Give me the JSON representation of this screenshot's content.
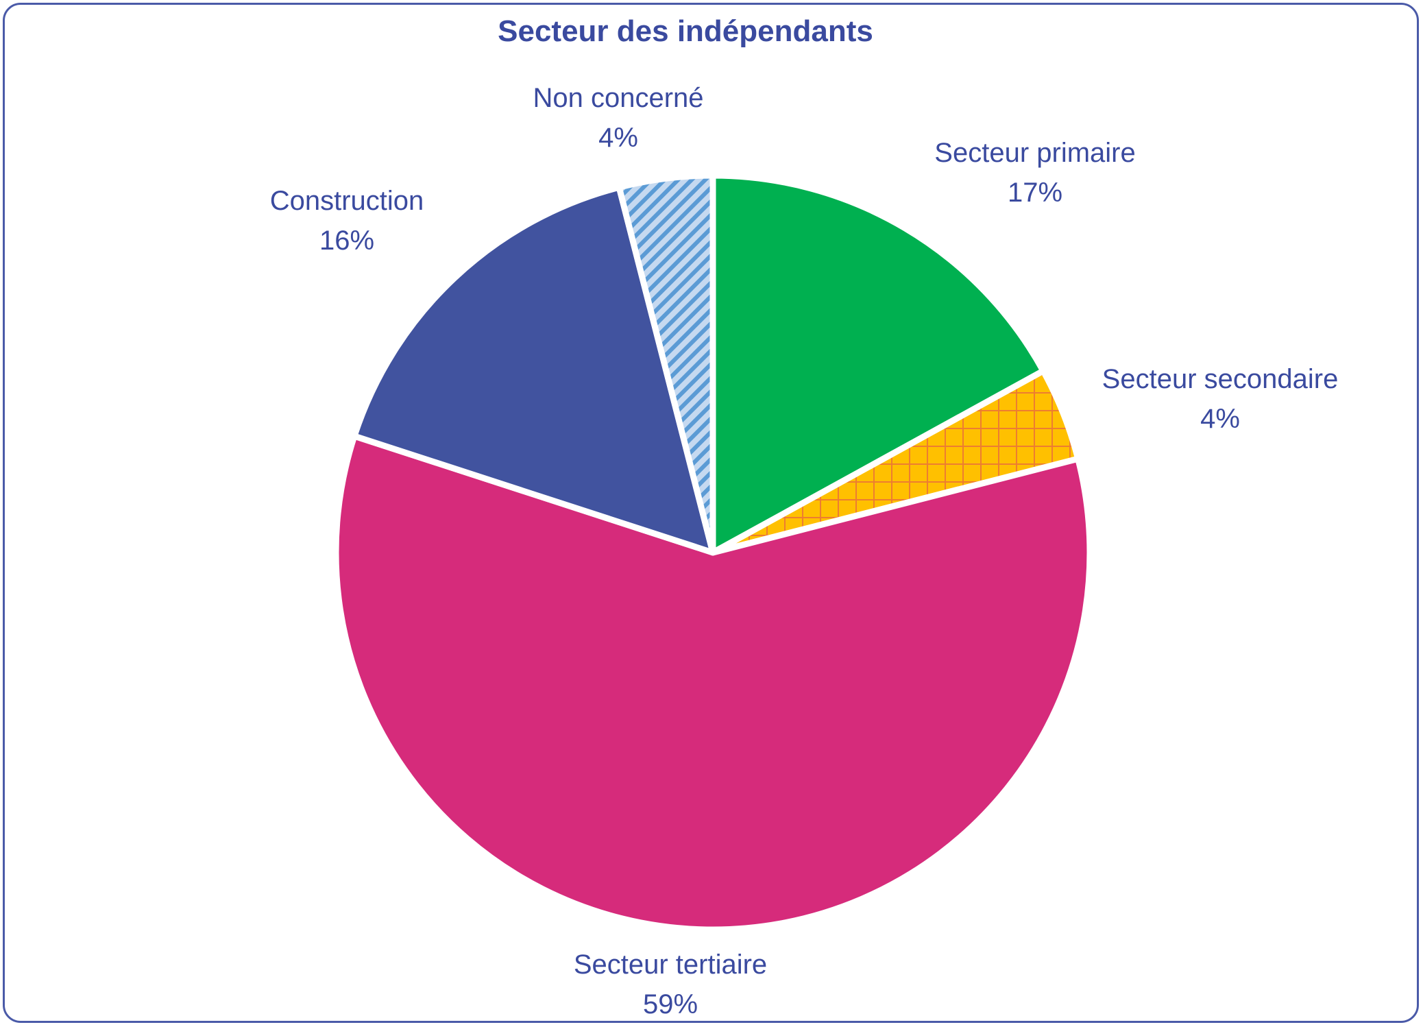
{
  "chart_data": {
    "type": "pie",
    "title": "Secteur des indépendants",
    "slices": [
      {
        "label": "Secteur primaire",
        "value": 17,
        "display": "17%",
        "color": "#00b050",
        "pattern": "solid"
      },
      {
        "label": "Secteur secondaire",
        "value": 4,
        "display": "4%",
        "color": "#ffc000",
        "pattern": "crosshatch",
        "pattern_color": "#ed7d31"
      },
      {
        "label": "Secteur tertiaire",
        "value": 59,
        "display": "59%",
        "color": "#d62b7b",
        "pattern": "solid"
      },
      {
        "label": "Construction",
        "value": 16,
        "display": "16%",
        "color": "#41539f",
        "pattern": "solid"
      },
      {
        "label": "Non concerné",
        "value": 4,
        "display": "4%",
        "color": "#9dc3e6",
        "pattern": "diagonal",
        "pattern_color": "#5b9bd5"
      }
    ],
    "start_angle": "12 o'clock",
    "direction": "clockwise",
    "legend": "none",
    "data_labels": "outside",
    "frame_color": "#4a5aa8",
    "text_color": "#3a4a9f"
  }
}
